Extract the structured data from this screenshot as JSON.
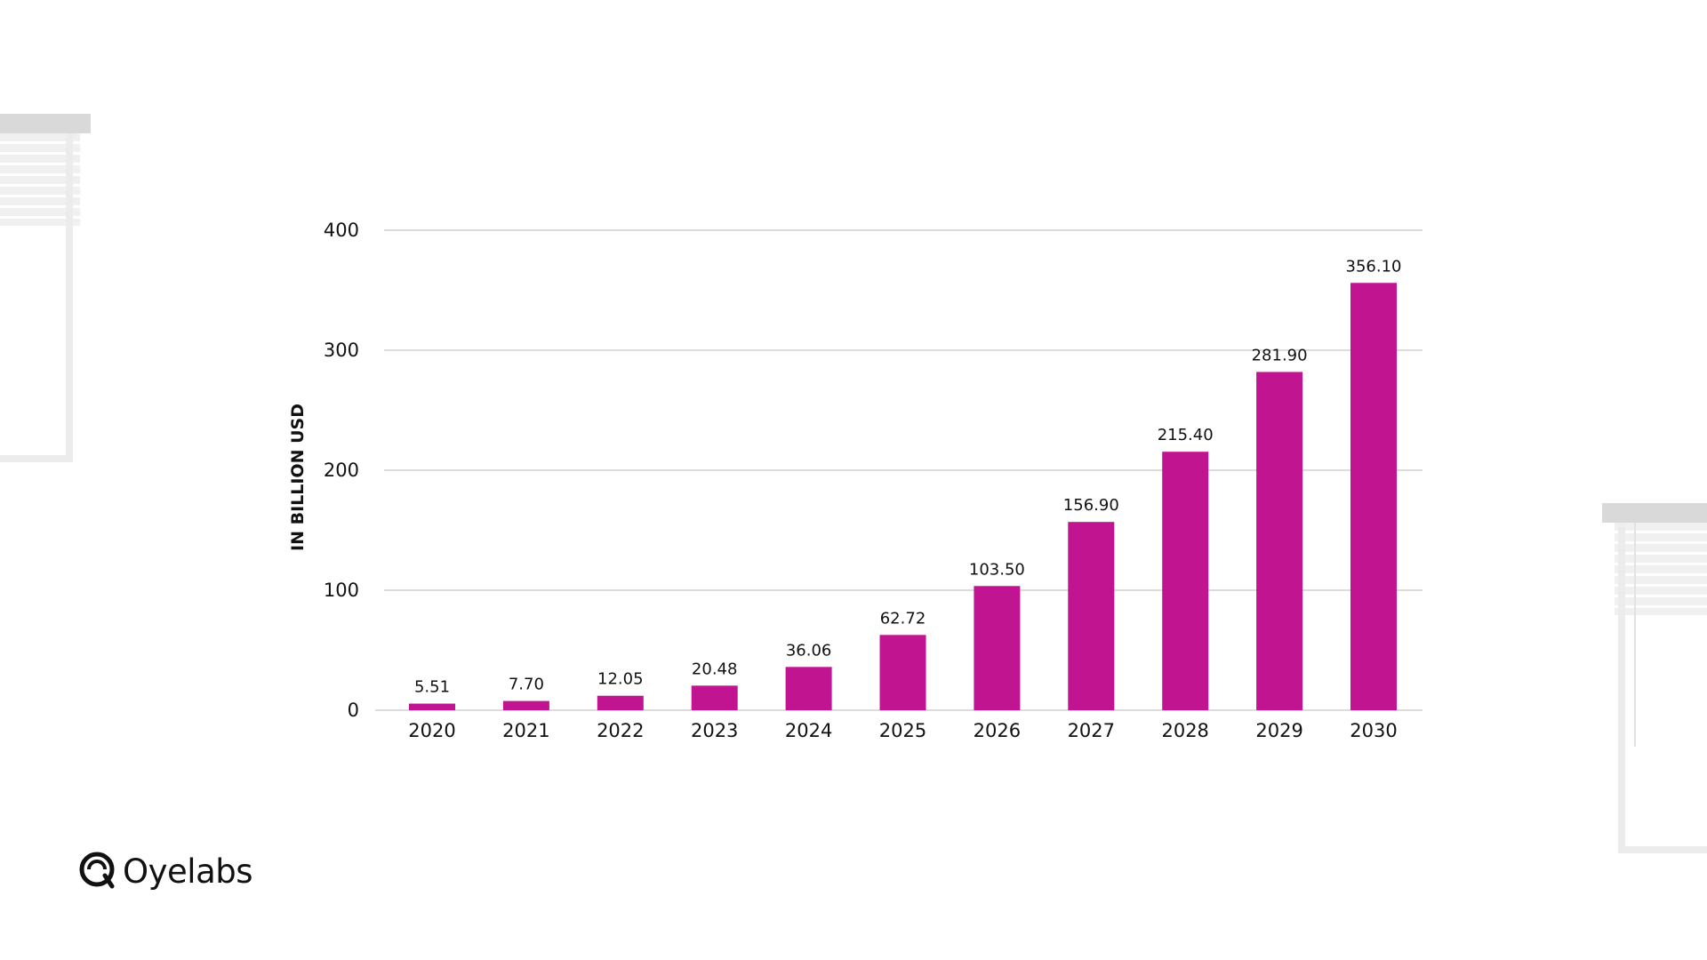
{
  "brand": {
    "name": "Oyelabs",
    "logo_icon": "oyelabs-logo-icon"
  },
  "colors": {
    "bar": "#c11490",
    "grid": "#c8c8c8",
    "text": "#111111"
  },
  "chart_data": {
    "type": "bar",
    "title": "",
    "xlabel": "",
    "ylabel": "IN BILLION USD",
    "ylim": [
      0,
      400
    ],
    "yticks": [
      0,
      100,
      200,
      300,
      400
    ],
    "grid": true,
    "categories": [
      "2020",
      "2021",
      "2022",
      "2023",
      "2024",
      "2025",
      "2026",
      "2027",
      "2028",
      "2029",
      "2030"
    ],
    "values": [
      5.51,
      7.7,
      12.05,
      20.48,
      36.06,
      62.72,
      103.5,
      156.9,
      215.4,
      281.9,
      356.1
    ],
    "value_labels": [
      "5.51",
      "7.70",
      "12.05",
      "20.48",
      "36.06",
      "62.72",
      "103.50",
      "156.90",
      "215.40",
      "281.90",
      "356.10"
    ]
  }
}
